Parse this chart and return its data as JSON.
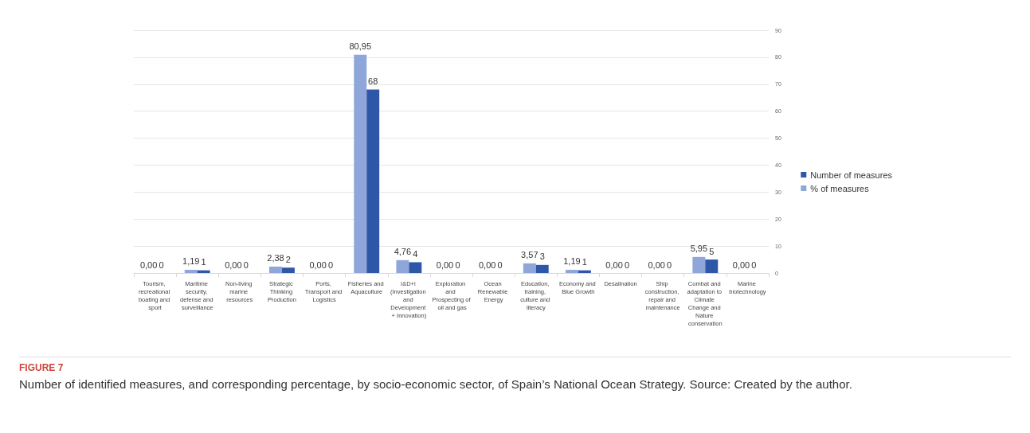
{
  "chart_data": {
    "type": "bar",
    "title": "FIGURE 7",
    "subtitle": "Number of identified measures, and corresponding percentage, by socio-economic sector, of Spain’s National Ocean Strategy. Source: Created by the author.",
    "categories": [
      "Tourism, recreational boating and sport",
      "Maritime security, defense and surveillance",
      "Non-living marine resources",
      "Strategic Thinking Production",
      "Ports, Transport and Logistics",
      "Fisheries and Aquaculture",
      "I&D+i (Investigation and Development + Innovation)",
      "Exploration and Prospecting of oil and gas",
      "Ocean Renewable Energy",
      "Education, training, culture and literacy",
      "Economy and Blue Growth",
      "Desalination",
      "Ship construction, repair and maintenance",
      "Combat and adaptation to Climate Change and Nature conservation",
      "Marine biotechnology"
    ],
    "series": [
      {
        "name": "% of measures",
        "color": "#8fa6da",
        "values": [
          0,
          1.19,
          0,
          2.38,
          0,
          80.95,
          4.76,
          0,
          0,
          3.57,
          1.19,
          0,
          0,
          5.95,
          0
        ],
        "value_labels": [
          "0,00",
          "1,19",
          "0,00",
          "2,38",
          "0,00",
          "80,95",
          "4,76",
          "0,00",
          "0,00",
          "3,57",
          "1,19",
          "0,00",
          "0,00",
          "5,95",
          "0,00"
        ]
      },
      {
        "name": "Number of measures",
        "color": "#2f57a8",
        "values": [
          0,
          1,
          0,
          2,
          0,
          68,
          4,
          0,
          0,
          3,
          1,
          0,
          0,
          5,
          0
        ],
        "value_labels": [
          "0",
          "1",
          "0",
          "2",
          "0",
          "68",
          "4",
          "0",
          "0",
          "3",
          "1",
          "0",
          "0",
          "5",
          "0"
        ]
      }
    ],
    "ylim": [
      0,
      90
    ],
    "yticks": [
      0,
      10,
      20,
      30,
      40,
      50,
      60,
      70,
      80,
      90
    ],
    "grid": "y",
    "legend": "right"
  }
}
